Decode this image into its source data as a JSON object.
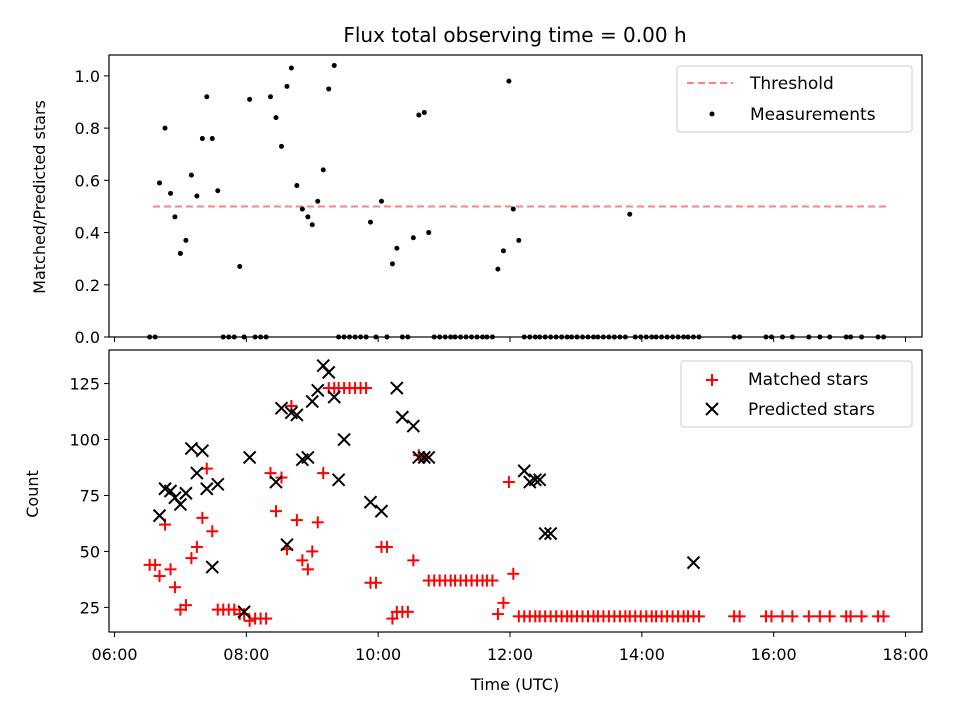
{
  "title": "Flux total observing time = 0.00 h",
  "chart_data": [
    {
      "type": "scatter",
      "ylabel": "Matched/Predicted stars",
      "xlabel": "",
      "ylim": [
        0,
        1.08
      ],
      "xlim": [
        "05:55",
        "18:15"
      ],
      "yticks": [
        0.0,
        0.2,
        0.4,
        0.6,
        0.8,
        1.0
      ],
      "ytick_labels": [
        "0.0",
        "0.2",
        "0.4",
        "0.6",
        "0.8",
        "1.0"
      ],
      "legend_position": "top-right",
      "threshold": {
        "name": "Threshold",
        "y": 0.5,
        "x_start": "06:35",
        "x_end": "17:45",
        "color": "#ff8080"
      },
      "series": [
        {
          "name": "Measurements",
          "color": "#000000",
          "marker": "dot",
          "x": [
            "06:32",
            "06:37",
            "06:41",
            "06:46",
            "06:51",
            "06:55",
            "07:00",
            "07:05",
            "07:10",
            "07:15",
            "07:20",
            "07:24",
            "07:29",
            "07:34",
            "07:39",
            "07:44",
            "07:49",
            "07:54",
            "07:58",
            "08:03",
            "08:08",
            "08:13",
            "08:18",
            "08:22",
            "08:27",
            "08:32",
            "08:37",
            "08:41",
            "08:46",
            "08:51",
            "08:56",
            "09:00",
            "09:05",
            "09:10",
            "09:15",
            "09:20",
            "09:24",
            "09:29",
            "09:34",
            "09:39",
            "09:44",
            "09:49",
            "09:53",
            "09:58",
            "10:03",
            "10:08",
            "10:13",
            "10:17",
            "10:22",
            "10:27",
            "10:32",
            "10:37",
            "10:42",
            "10:46",
            "10:51",
            "10:56",
            "11:01",
            "11:06",
            "11:10",
            "11:15",
            "11:20",
            "11:25",
            "11:30",
            "11:35",
            "11:39",
            "11:44",
            "11:49",
            "11:54",
            "11:59",
            "12:03",
            "12:08",
            "12:13",
            "12:18",
            "12:23",
            "12:27",
            "12:32",
            "12:37",
            "12:42",
            "12:47",
            "12:52",
            "12:56",
            "13:01",
            "13:06",
            "13:11",
            "13:16",
            "13:20",
            "13:25",
            "13:30",
            "13:35",
            "13:40",
            "13:45",
            "13:49",
            "13:54",
            "13:59",
            "14:04",
            "14:09",
            "14:13",
            "14:18",
            "14:23",
            "14:28",
            "14:33",
            "14:38",
            "14:42",
            "14:47",
            "14:52",
            "15:24",
            "15:29",
            "15:53",
            "15:58",
            "16:08",
            "16:17",
            "16:32",
            "16:42",
            "16:51",
            "17:06",
            "17:10",
            "17:20",
            "17:35",
            "17:40"
          ],
          "y": [
            0.0,
            0.0,
            0.59,
            0.8,
            0.55,
            0.46,
            0.32,
            0.37,
            0.62,
            0.54,
            0.76,
            0.92,
            0.76,
            0.56,
            0.0,
            0.0,
            0.0,
            0.27,
            0.0,
            0.91,
            0.0,
            0.0,
            0.0,
            0.92,
            0.84,
            0.73,
            0.96,
            1.03,
            0.58,
            0.49,
            0.46,
            0.43,
            0.52,
            0.64,
            0.95,
            1.04,
            0.0,
            0.0,
            0.0,
            0.0,
            0.0,
            0.0,
            0.44,
            0.0,
            0.52,
            0.0,
            0.28,
            0.34,
            0.0,
            0.0,
            0.38,
            0.85,
            0.86,
            0.4,
            0.0,
            0.0,
            0.0,
            0.0,
            0.0,
            0.0,
            0.0,
            0.0,
            0.0,
            0.0,
            0.0,
            0.0,
            0.26,
            0.33,
            0.98,
            0.49,
            0.37,
            0.0,
            0.0,
            0.0,
            0.0,
            0.0,
            0.0,
            0.0,
            0.0,
            0.0,
            0.0,
            0.0,
            0.0,
            0.0,
            0.0,
            0.0,
            0.0,
            0.0,
            0.0,
            0.0,
            0.0,
            0.47,
            0.0,
            0.0,
            0.0,
            0.0,
            0.0,
            0.0,
            0.0,
            0.0,
            0.0,
            0.0,
            0.0,
            0.0,
            0.0,
            0.0,
            0.0,
            0.0,
            0.0,
            0.0,
            0.0,
            0.0,
            0.0,
            0.0,
            0.0,
            0.0,
            0.0,
            0.0,
            0.0
          ]
        }
      ]
    },
    {
      "type": "scatter",
      "ylabel": "Count",
      "xlabel": "Time (UTC)",
      "ylim": [
        14,
        140
      ],
      "xlim": [
        "05:55",
        "18:15"
      ],
      "yticks": [
        25,
        50,
        75,
        100,
        125
      ],
      "ytick_labels": [
        "25",
        "50",
        "75",
        "100",
        "125"
      ],
      "xtick_values": [
        "06:00",
        "08:00",
        "10:00",
        "12:00",
        "14:00",
        "16:00",
        "18:00"
      ],
      "xtick_labels": [
        "06:00",
        "08:00",
        "10:00",
        "12:00",
        "14:00",
        "16:00",
        "18:00"
      ],
      "legend_position": "top-right",
      "series": [
        {
          "name": "Matched stars",
          "color": "#ff0000",
          "marker": "plus",
          "x": [
            "06:32",
            "06:37",
            "06:41",
            "06:46",
            "06:51",
            "06:55",
            "07:00",
            "07:05",
            "07:10",
            "07:15",
            "07:20",
            "07:24",
            "07:29",
            "07:34",
            "07:39",
            "07:44",
            "07:49",
            "07:54",
            "07:58",
            "08:03",
            "08:08",
            "08:13",
            "08:18",
            "08:22",
            "08:27",
            "08:32",
            "08:37",
            "08:41",
            "08:46",
            "08:51",
            "08:56",
            "09:00",
            "09:05",
            "09:10",
            "09:15",
            "09:20",
            "09:24",
            "09:29",
            "09:34",
            "09:39",
            "09:44",
            "09:49",
            "09:53",
            "09:58",
            "10:03",
            "10:08",
            "10:13",
            "10:17",
            "10:22",
            "10:27",
            "10:32",
            "10:37",
            "10:42",
            "10:46",
            "10:51",
            "10:56",
            "11:01",
            "11:06",
            "11:10",
            "11:15",
            "11:20",
            "11:25",
            "11:30",
            "11:35",
            "11:39",
            "11:44",
            "11:49",
            "11:54",
            "11:59",
            "12:03",
            "12:08",
            "12:13",
            "12:18",
            "12:23",
            "12:27",
            "12:32",
            "12:37",
            "12:42",
            "12:47",
            "12:52",
            "12:56",
            "13:01",
            "13:06",
            "13:11",
            "13:16",
            "13:20",
            "13:25",
            "13:30",
            "13:35",
            "13:40",
            "13:45",
            "13:49",
            "13:54",
            "13:59",
            "14:04",
            "14:09",
            "14:13",
            "14:18",
            "14:23",
            "14:28",
            "14:33",
            "14:38",
            "14:42",
            "14:47",
            "14:52",
            "15:24",
            "15:29",
            "15:53",
            "15:58",
            "16:08",
            "16:17",
            "16:32",
            "16:42",
            "16:51",
            "17:06",
            "17:10",
            "17:20",
            "17:35",
            "17:40"
          ],
          "y": [
            44,
            44,
            39,
            62,
            42,
            34,
            24,
            26,
            47,
            52,
            65,
            87,
            59,
            24,
            24,
            24,
            24,
            22,
            22,
            19,
            20,
            20,
            20,
            85,
            68,
            83,
            51,
            115,
            64,
            46,
            42,
            50,
            63,
            85,
            123,
            123,
            123,
            123,
            123,
            123,
            123,
            123,
            36,
            36,
            52,
            52,
            20,
            23,
            23,
            23,
            46,
            93,
            92,
            37,
            37,
            37,
            37,
            37,
            37,
            37,
            37,
            37,
            37,
            37,
            37,
            37,
            22,
            27,
            81,
            40,
            21,
            21,
            21,
            21,
            21,
            21,
            21,
            21,
            21,
            21,
            21,
            21,
            21,
            21,
            21,
            21,
            21,
            21,
            21,
            21,
            21,
            21,
            21,
            21,
            21,
            21,
            21,
            21,
            21,
            21,
            21,
            21,
            21,
            21,
            21,
            21,
            21,
            21,
            21,
            21,
            21,
            21,
            21,
            21,
            21,
            21,
            21,
            21,
            21
          ]
        },
        {
          "name": "Predicted stars",
          "color": "#000000",
          "marker": "x",
          "x": [
            "06:41",
            "06:46",
            "06:51",
            "06:55",
            "07:00",
            "07:05",
            "07:10",
            "07:15",
            "07:20",
            "07:24",
            "07:29",
            "07:34",
            "07:58",
            "08:03",
            "08:27",
            "08:32",
            "08:37",
            "08:41",
            "08:46",
            "08:51",
            "08:56",
            "09:00",
            "09:05",
            "09:10",
            "09:15",
            "09:20",
            "09:24",
            "09:29",
            "09:53",
            "10:03",
            "10:17",
            "10:22",
            "10:32",
            "10:37",
            "10:42",
            "10:46",
            "12:13",
            "12:18",
            "12:23",
            "12:27",
            "12:32",
            "12:37",
            "14:47"
          ],
          "y": [
            66,
            78,
            77,
            74,
            71,
            76,
            96,
            85,
            95,
            78,
            43,
            80,
            23,
            92,
            81,
            114,
            53,
            112,
            111,
            91,
            92,
            117,
            122,
            133,
            130,
            119,
            82,
            100,
            72,
            68,
            123,
            110,
            106,
            92,
            92,
            92,
            86,
            81,
            82,
            82,
            58,
            58,
            45
          ]
        }
      ]
    }
  ]
}
